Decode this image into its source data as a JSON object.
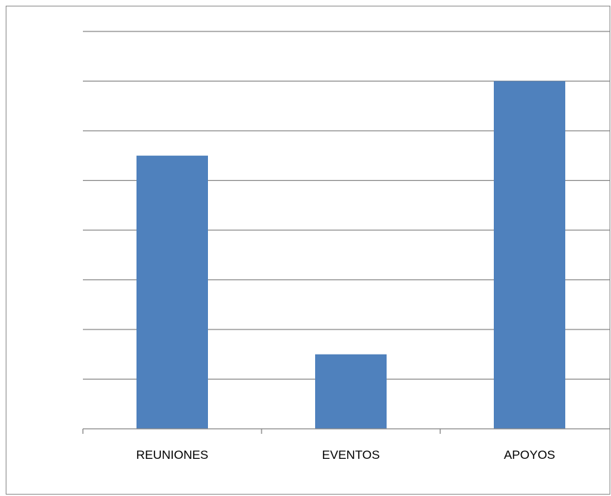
{
  "chart_data": {
    "type": "bar",
    "title": "",
    "xlabel": "",
    "ylabel": "",
    "categories": [
      "REUNIONES",
      "EVENTOS",
      "APOYOS"
    ],
    "values": [
      11,
      3,
      14
    ],
    "ylim": [
      0,
      16
    ],
    "y_tick_step": 2,
    "y_tick_labels_visible": false,
    "grid": true,
    "legend": "none",
    "colors": {
      "bar": "#4f81bd",
      "grid": "#868686",
      "axis": "#868686",
      "frame": "#8c8c8c"
    }
  }
}
